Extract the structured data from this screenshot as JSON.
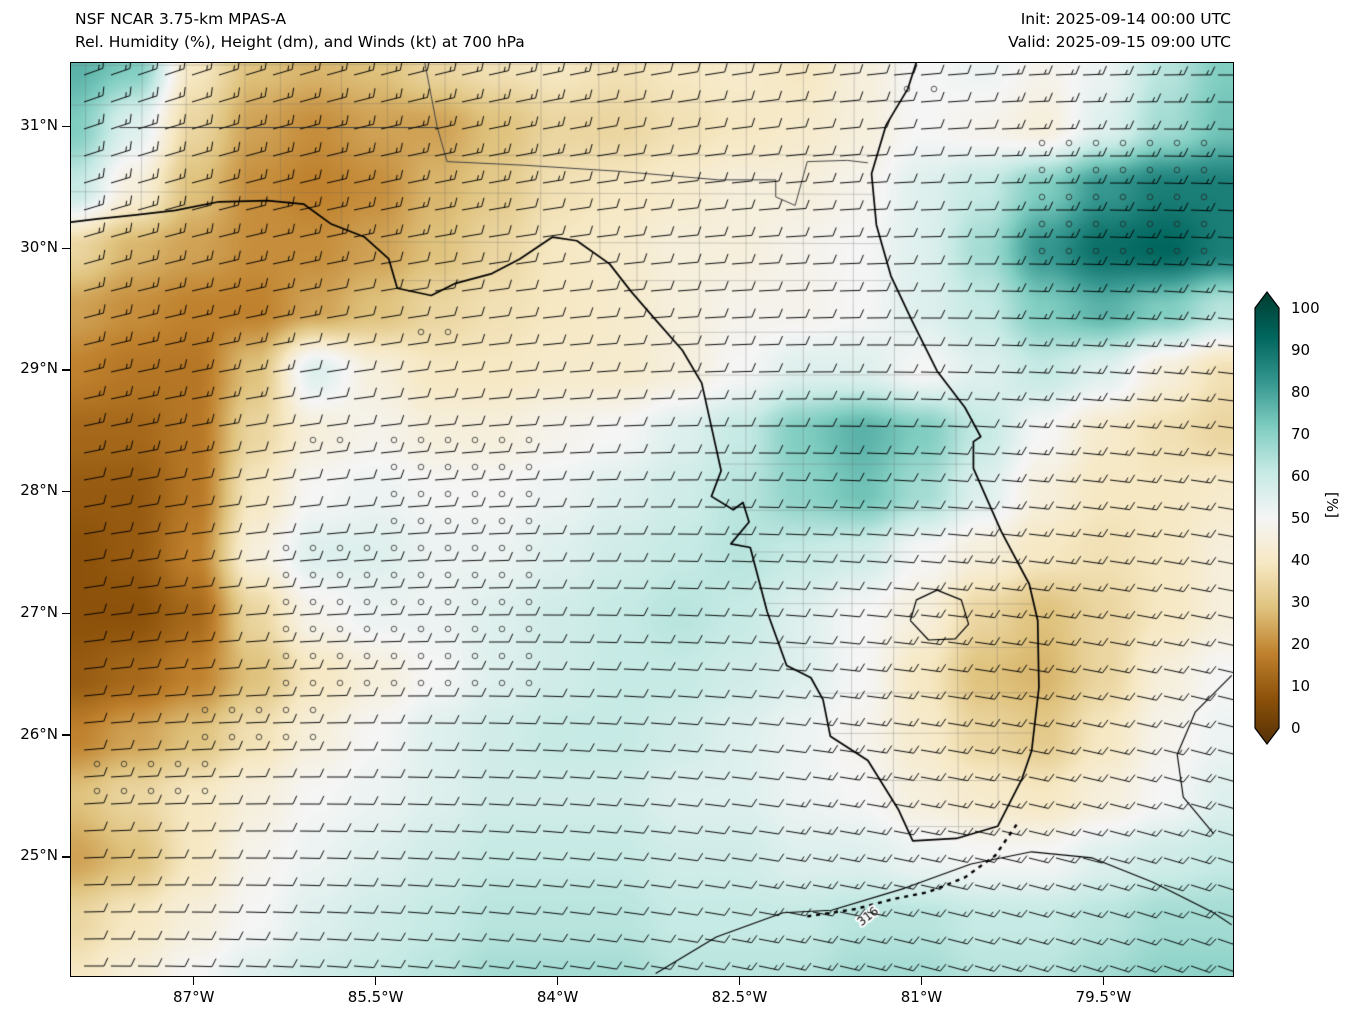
{
  "header": {
    "title_line1": "NSF NCAR 3.75-km MPAS-A",
    "title_line2": "Rel. Humidity (%), Height (dm), and Winds (kt) at 700 hPa",
    "init_label": "Init: 2025-09-14 00:00 UTC",
    "valid_label": "Valid: 2025-09-15 09:00 UTC"
  },
  "axes": {
    "lat_ticks": [
      {
        "label": "31°N",
        "value": 31
      },
      {
        "label": "30°N",
        "value": 30
      },
      {
        "label": "29°N",
        "value": 29
      },
      {
        "label": "28°N",
        "value": 28
      },
      {
        "label": "27°N",
        "value": 27
      },
      {
        "label": "26°N",
        "value": 26
      },
      {
        "label": "25°N",
        "value": 25
      }
    ],
    "lon_ticks": [
      {
        "label": "87°W",
        "value": -87
      },
      {
        "label": "85.5°W",
        "value": -85.5
      },
      {
        "label": "84°W",
        "value": -84
      },
      {
        "label": "82.5°W",
        "value": -82.5
      },
      {
        "label": "81°W",
        "value": -81
      },
      {
        "label": "79.5°W",
        "value": -79.5
      }
    ]
  },
  "chart_data": {
    "type": "heatmap",
    "title": "NSF NCAR 3.75-km MPAS-A",
    "subtitle": "Rel. Humidity (%), Height (dm), and Winds (kt) at 700 hPa",
    "init_time": "2025-09-14 00:00 UTC",
    "valid_time": "2025-09-15 09:00 UTC",
    "overlays": [
      "wind_barbs",
      "height_contours",
      "stipple_dots",
      "coastlines",
      "county_borders"
    ],
    "extent": {
      "lon_min": -88.02,
      "lon_max": -78.44,
      "lat_min": 24.03,
      "lat_max": 31.53
    },
    "colorbar": {
      "label": "[%]",
      "ticks": [
        0,
        10,
        20,
        30,
        40,
        50,
        60,
        70,
        80,
        90,
        100
      ],
      "range": [
        0,
        100
      ],
      "extend": "both",
      "stops": [
        {
          "value": 0,
          "color": "#543005"
        },
        {
          "value": 10,
          "color": "#8c510a"
        },
        {
          "value": 20,
          "color": "#bf812d"
        },
        {
          "value": 30,
          "color": "#dfc27d"
        },
        {
          "value": 40,
          "color": "#f6e8c3"
        },
        {
          "value": 50,
          "color": "#f5f5f5"
        },
        {
          "value": 60,
          "color": "#c7eae5"
        },
        {
          "value": 70,
          "color": "#80cdc1"
        },
        {
          "value": 80,
          "color": "#35978f"
        },
        {
          "value": 90,
          "color": "#01665e"
        },
        {
          "value": 100,
          "color": "#003c30"
        }
      ]
    },
    "rh_grid": {
      "lon0": -88.0,
      "dlon": 0.5,
      "lat0": 31.5,
      "dlat": -0.5,
      "cols": 20,
      "rows": 16,
      "values": [
        [
          75,
          70,
          40,
          30,
          28,
          30,
          35,
          38,
          40,
          38,
          40,
          42,
          40,
          45,
          50,
          52,
          48,
          52,
          62,
          70
        ],
        [
          70,
          55,
          35,
          25,
          22,
          25,
          25,
          30,
          35,
          35,
          38,
          40,
          42,
          45,
          50,
          48,
          45,
          55,
          65,
          72
        ],
        [
          60,
          45,
          30,
          22,
          20,
          22,
          28,
          32,
          38,
          40,
          42,
          45,
          45,
          48,
          55,
          60,
          70,
          80,
          85,
          85
        ],
        [
          35,
          28,
          25,
          22,
          22,
          25,
          30,
          35,
          40,
          42,
          45,
          45,
          48,
          50,
          55,
          65,
          80,
          88,
          90,
          85
        ],
        [
          25,
          22,
          20,
          20,
          25,
          30,
          35,
          38,
          40,
          42,
          45,
          48,
          48,
          50,
          55,
          60,
          70,
          75,
          70,
          62
        ],
        [
          20,
          18,
          18,
          30,
          55,
          45,
          40,
          40,
          42,
          42,
          45,
          50,
          55,
          55,
          50,
          55,
          60,
          55,
          45,
          38
        ],
        [
          15,
          15,
          18,
          35,
          45,
          48,
          45,
          45,
          48,
          50,
          55,
          60,
          70,
          75,
          70,
          60,
          50,
          42,
          38,
          35
        ],
        [
          12,
          12,
          18,
          40,
          50,
          52,
          50,
          50,
          52,
          55,
          58,
          62,
          68,
          72,
          65,
          55,
          45,
          40,
          40,
          42
        ],
        [
          10,
          12,
          20,
          45,
          55,
          55,
          52,
          52,
          55,
          58,
          60,
          62,
          60,
          58,
          50,
          45,
          40,
          38,
          40,
          45
        ],
        [
          10,
          10,
          15,
          35,
          48,
          52,
          52,
          55,
          58,
          60,
          62,
          60,
          55,
          50,
          45,
          35,
          30,
          35,
          40,
          45
        ],
        [
          12,
          15,
          20,
          30,
          40,
          45,
          50,
          55,
          58,
          60,
          60,
          58,
          55,
          50,
          40,
          30,
          28,
          35,
          45,
          50
        ],
        [
          20,
          25,
          30,
          38,
          45,
          50,
          55,
          58,
          60,
          60,
          58,
          55,
          52,
          48,
          42,
          35,
          32,
          40,
          48,
          52
        ],
        [
          30,
          35,
          40,
          45,
          50,
          52,
          55,
          58,
          58,
          58,
          55,
          55,
          52,
          50,
          45,
          42,
          40,
          45,
          50,
          55
        ],
        [
          25,
          30,
          40,
          48,
          52,
          55,
          58,
          60,
          60,
          60,
          58,
          58,
          55,
          55,
          52,
          50,
          50,
          55,
          58,
          60
        ],
        [
          35,
          40,
          45,
          50,
          55,
          58,
          60,
          62,
          62,
          62,
          60,
          60,
          60,
          62,
          62,
          60,
          60,
          62,
          65,
          65
        ],
        [
          40,
          45,
          50,
          55,
          58,
          60,
          62,
          65,
          65,
          65,
          62,
          62,
          62,
          65,
          65,
          62,
          62,
          65,
          68,
          68
        ]
      ]
    },
    "wind": {
      "units": "kt",
      "dir_grid": [
        [
          70,
          75,
          80,
          85,
          90
        ],
        [
          75,
          80,
          85,
          90,
          95
        ],
        [
          80,
          85,
          90,
          95,
          100
        ],
        [
          85,
          90,
          95,
          100,
          105
        ],
        [
          90,
          95,
          100,
          105,
          110
        ]
      ],
      "speed_grid": [
        [
          15,
          15,
          12,
          12,
          15
        ],
        [
          15,
          12,
          12,
          12,
          15
        ],
        [
          12,
          12,
          10,
          12,
          15
        ],
        [
          12,
          10,
          10,
          15,
          18
        ],
        [
          10,
          10,
          12,
          15,
          18
        ]
      ]
    },
    "stipple_regions": [
      {
        "lon": [
          -85.45,
          -84.05
        ],
        "lat": [
          26.3,
          28.65
        ]
      },
      {
        "lon": [
          -86.3,
          -85.4
        ],
        "lat": [
          26.35,
          27.55
        ]
      },
      {
        "lon": [
          -87.0,
          -85.9
        ],
        "lat": [
          25.85,
          26.3
        ]
      },
      {
        "lon": [
          -87.9,
          -86.9
        ],
        "lat": [
          25.5,
          25.95
        ]
      },
      {
        "lon": [
          -80.15,
          -78.5
        ],
        "lat": [
          29.9,
          30.9
        ]
      },
      {
        "lon": [
          -81.3,
          -80.7
        ],
        "lat": [
          31.1,
          31.5
        ]
      },
      {
        "lon": [
          -85.25,
          -84.85
        ],
        "lat": [
          29.1,
          29.35
        ]
      },
      {
        "lon": [
          -86.1,
          -85.6
        ],
        "lat": [
          28.3,
          28.5
        ]
      }
    ],
    "contours": [
      {
        "label": "316",
        "label_pos": [
          -81.45,
          24.52
        ],
        "label_angle": -38,
        "points": [
          [
            -83.2,
            24.05
          ],
          [
            -82.7,
            24.35
          ],
          [
            -82.15,
            24.55
          ],
          [
            -81.75,
            24.57
          ],
          [
            -81.15,
            24.75
          ],
          [
            -80.6,
            24.95
          ],
          [
            -80.1,
            25.05
          ],
          [
            -79.6,
            25.0
          ],
          [
            -79.1,
            24.8
          ],
          [
            -78.6,
            24.55
          ],
          [
            -78.45,
            24.45
          ]
        ]
      },
      {
        "label": "",
        "points": [
          [
            -78.45,
            26.5
          ],
          [
            -78.75,
            26.2
          ],
          [
            -78.9,
            25.85
          ],
          [
            -78.85,
            25.5
          ],
          [
            -78.6,
            25.2
          ]
        ]
      }
    ],
    "coastline": [
      [
        -88.05,
        30.22
      ],
      [
        -87.8,
        30.25
      ],
      [
        -87.5,
        30.28
      ],
      [
        -87.16,
        30.32
      ],
      [
        -86.8,
        30.39
      ],
      [
        -86.4,
        30.4
      ],
      [
        -86.1,
        30.37
      ],
      [
        -85.88,
        30.21
      ],
      [
        -85.6,
        30.1
      ],
      [
        -85.4,
        29.92
      ],
      [
        -85.33,
        29.68
      ],
      [
        -85.05,
        29.62
      ],
      [
        -84.85,
        29.72
      ],
      [
        -84.55,
        29.8
      ],
      [
        -84.32,
        29.92
      ],
      [
        -84.05,
        30.1
      ],
      [
        -83.85,
        30.07
      ],
      [
        -83.58,
        29.88
      ],
      [
        -83.4,
        29.65
      ],
      [
        -83.2,
        29.42
      ],
      [
        -82.98,
        29.17
      ],
      [
        -82.82,
        28.9
      ],
      [
        -82.72,
        28.45
      ],
      [
        -82.66,
        28.18
      ],
      [
        -82.74,
        27.97
      ],
      [
        -82.56,
        27.86
      ],
      [
        -82.48,
        27.92
      ],
      [
        -82.43,
        27.76
      ],
      [
        -82.58,
        27.58
      ],
      [
        -82.42,
        27.55
      ],
      [
        -82.28,
        27.02
      ],
      [
        -82.12,
        26.58
      ],
      [
        -81.92,
        26.48
      ],
      [
        -81.82,
        26.3
      ],
      [
        -81.76,
        26.0
      ],
      [
        -81.45,
        25.8
      ],
      [
        -81.2,
        25.4
      ],
      [
        -81.08,
        25.14
      ],
      [
        -80.72,
        25.16
      ],
      [
        -80.38,
        25.26
      ],
      [
        -80.18,
        25.65
      ],
      [
        -80.1,
        25.88
      ],
      [
        -80.04,
        26.4
      ],
      [
        -80.05,
        26.95
      ],
      [
        -80.12,
        27.25
      ],
      [
        -80.35,
        27.68
      ],
      [
        -80.58,
        28.2
      ],
      [
        -80.58,
        28.42
      ],
      [
        -80.52,
        28.46
      ],
      [
        -80.65,
        28.7
      ],
      [
        -80.88,
        29.0
      ],
      [
        -81.08,
        29.4
      ],
      [
        -81.26,
        29.78
      ],
      [
        -81.38,
        30.2
      ],
      [
        -81.42,
        30.62
      ],
      [
        -81.3,
        31.02
      ],
      [
        -81.12,
        31.32
      ],
      [
        -81.03,
        31.6
      ]
    ],
    "borders": [
      [
        [
          -87.62,
          31.0
        ],
        [
          -85.0,
          31.0
        ],
        [
          -85.12,
          31.62
        ]
      ],
      [
        [
          -85.0,
          31.0
        ],
        [
          -84.92,
          30.72
        ],
        [
          -84.28,
          30.69
        ],
        [
          -83.5,
          30.64
        ],
        [
          -82.68,
          30.57
        ],
        [
          -82.21,
          30.57
        ],
        [
          -82.21,
          30.43
        ],
        [
          -82.05,
          30.36
        ],
        [
          -81.95,
          30.72
        ],
        [
          -81.62,
          30.73
        ],
        [
          -81.45,
          30.71
        ]
      ]
    ],
    "lake_okeechobee": [
      [
        -81.1,
        26.95
      ],
      [
        -81.05,
        27.12
      ],
      [
        -80.88,
        27.2
      ],
      [
        -80.68,
        27.12
      ],
      [
        -80.62,
        26.92
      ],
      [
        -80.73,
        26.8
      ],
      [
        -80.95,
        26.79
      ],
      [
        -81.1,
        26.95
      ]
    ],
    "florida_keys": [
      [
        -81.95,
        24.52
      ],
      [
        -81.55,
        24.58
      ],
      [
        -81.25,
        24.66
      ],
      [
        -80.95,
        24.72
      ],
      [
        -80.65,
        24.84
      ],
      [
        -80.4,
        25.02
      ],
      [
        -80.22,
        25.28
      ]
    ]
  }
}
